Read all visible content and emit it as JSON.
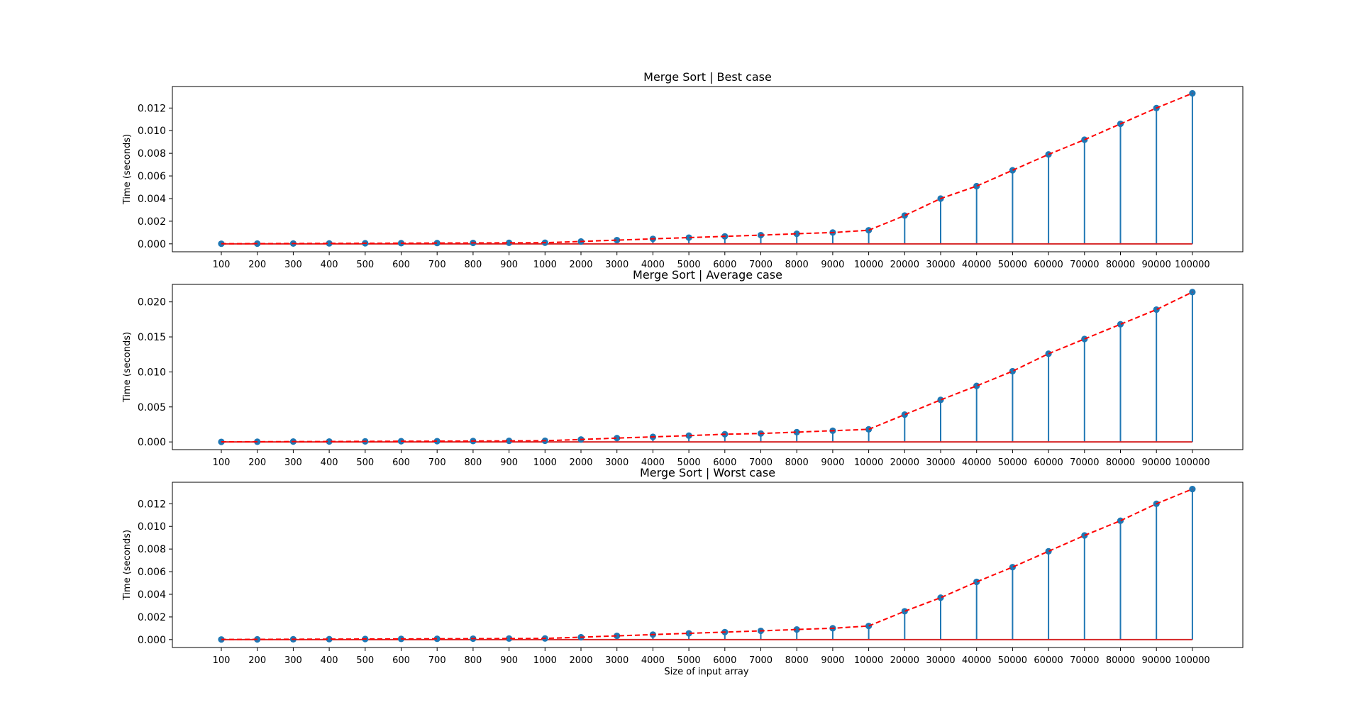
{
  "figure": {
    "xlabel": "Size of input array",
    "ylabel": "Time (seconds)"
  },
  "style": {
    "stem_color": "#1f77b4",
    "marker_color": "#1f77b4",
    "baseline_color": "#d62728",
    "trend_color": "#ff0000",
    "axis_color": "#000000"
  },
  "chart_data": [
    {
      "type": "stem",
      "title": "Merge Sort | Best case",
      "xlabel": "",
      "ylabel": "Time (seconds)",
      "categories": [
        "100",
        "200",
        "300",
        "400",
        "500",
        "600",
        "700",
        "800",
        "900",
        "1000",
        "2000",
        "3000",
        "4000",
        "5000",
        "6000",
        "7000",
        "8000",
        "9000",
        "10000",
        "20000",
        "30000",
        "40000",
        "50000",
        "60000",
        "70000",
        "80000",
        "90000",
        "100000"
      ],
      "values": [
        1e-05,
        2e-05,
        3e-05,
        4e-05,
        5e-05,
        6e-05,
        7e-05,
        8e-05,
        9e-05,
        0.0001,
        0.00021,
        0.00033,
        0.00044,
        0.00055,
        0.00066,
        0.00077,
        0.00089,
        0.001,
        0.0012,
        0.0025,
        0.004,
        0.0051,
        0.0065,
        0.0079,
        0.0092,
        0.0106,
        0.012,
        0.0133
      ],
      "ylim": [
        -0.0007,
        0.0139
      ],
      "yticks": [
        0.0,
        0.002,
        0.004,
        0.006,
        0.008,
        0.01,
        0.012
      ],
      "ytick_labels": [
        "0.000",
        "0.002",
        "0.004",
        "0.006",
        "0.008",
        "0.010",
        "0.012"
      ]
    },
    {
      "type": "stem",
      "title": "Merge Sort | Average case",
      "xlabel": "",
      "ylabel": "Time (seconds)",
      "categories": [
        "100",
        "200",
        "300",
        "400",
        "500",
        "600",
        "700",
        "800",
        "900",
        "1000",
        "2000",
        "3000",
        "4000",
        "5000",
        "6000",
        "7000",
        "8000",
        "9000",
        "10000",
        "20000",
        "30000",
        "40000",
        "50000",
        "60000",
        "70000",
        "80000",
        "90000",
        "100000"
      ],
      "values": [
        1e-05,
        3e-05,
        5e-05,
        6e-05,
        8e-05,
        0.0001,
        0.00011,
        0.00013,
        0.00015,
        0.00017,
        0.00035,
        0.00055,
        0.00072,
        0.0009,
        0.0011,
        0.0012,
        0.0014,
        0.0016,
        0.0018,
        0.0039,
        0.006,
        0.008,
        0.0101,
        0.0126,
        0.0147,
        0.0168,
        0.0189,
        0.0214
      ],
      "ylim": [
        -0.0011,
        0.0225
      ],
      "yticks": [
        0.0,
        0.005,
        0.01,
        0.015,
        0.02
      ],
      "ytick_labels": [
        "0.000",
        "0.005",
        "0.010",
        "0.015",
        "0.020"
      ]
    },
    {
      "type": "stem",
      "title": "Merge Sort | Worst case",
      "xlabel": "Size of input array",
      "ylabel": "Time (seconds)",
      "categories": [
        "100",
        "200",
        "300",
        "400",
        "500",
        "600",
        "700",
        "800",
        "900",
        "1000",
        "2000",
        "3000",
        "4000",
        "5000",
        "6000",
        "7000",
        "8000",
        "9000",
        "10000",
        "20000",
        "30000",
        "40000",
        "50000",
        "60000",
        "70000",
        "80000",
        "90000",
        "100000"
      ],
      "values": [
        1e-05,
        2e-05,
        3e-05,
        4e-05,
        5e-05,
        6e-05,
        7e-05,
        8e-05,
        9e-05,
        0.0001,
        0.00021,
        0.00033,
        0.00044,
        0.00055,
        0.00066,
        0.00077,
        0.00089,
        0.001,
        0.0012,
        0.0025,
        0.0037,
        0.0051,
        0.0064,
        0.0078,
        0.0092,
        0.0105,
        0.012,
        0.0133
      ],
      "ylim": [
        -0.0007,
        0.0139
      ],
      "yticks": [
        0.0,
        0.002,
        0.004,
        0.006,
        0.008,
        0.01,
        0.012
      ],
      "ytick_labels": [
        "0.000",
        "0.002",
        "0.004",
        "0.006",
        "0.008",
        "0.010",
        "0.012"
      ]
    }
  ]
}
